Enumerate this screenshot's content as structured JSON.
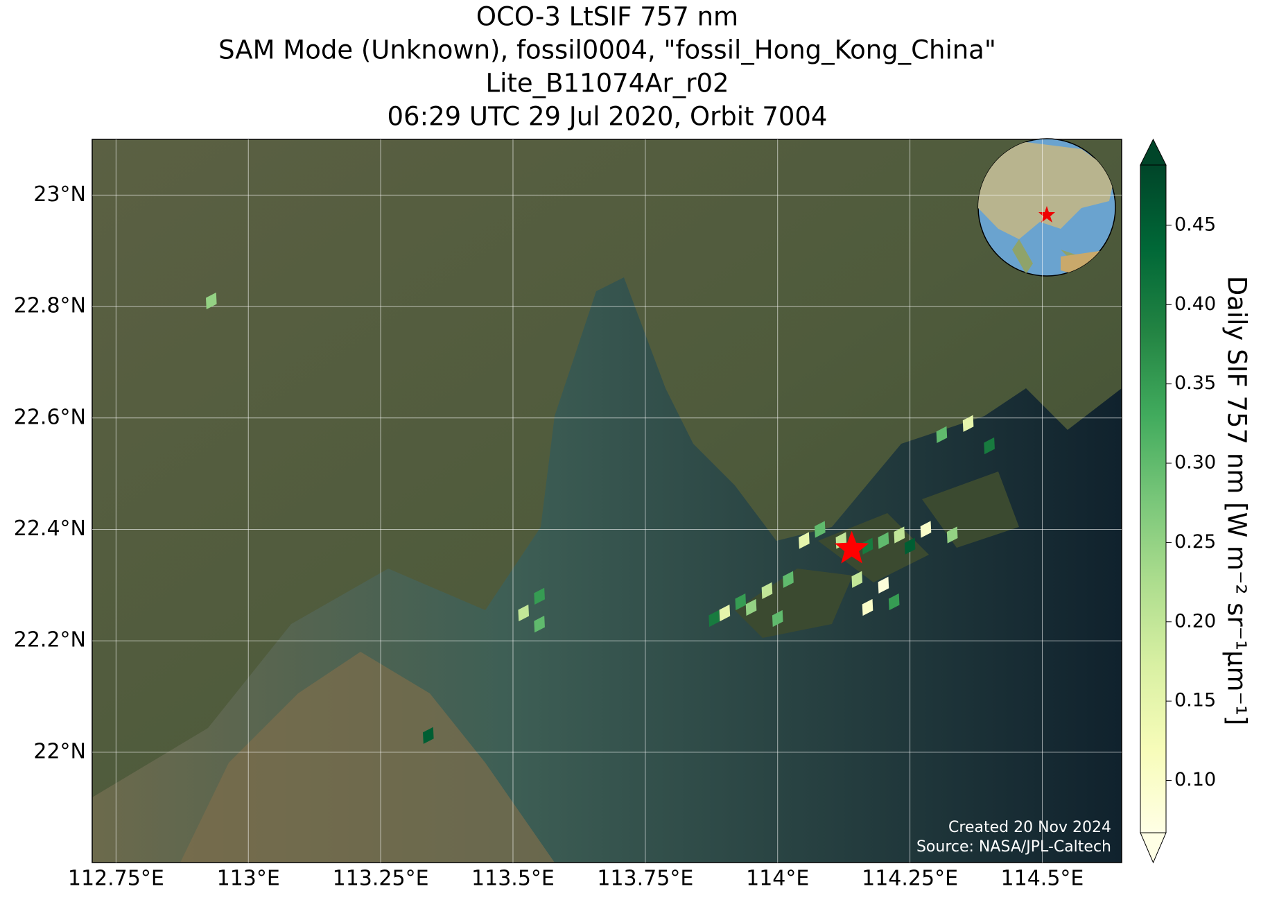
{
  "chart_data": {
    "type": "map",
    "title": [
      "OCO-3 LtSIF 757 nm",
      "SAM Mode (Unknown), fossil0004, \"fossil_Hong_Kong_China\"",
      "Lite_B11074Ar_r02",
      "06:29 UTC 29 Jul 2020, Orbit 7004"
    ],
    "xlim": [
      112.705,
      114.65
    ],
    "ylim": [
      21.802,
      23.1
    ],
    "xticks": [
      {
        "value": 112.75,
        "label": "112.75°E"
      },
      {
        "value": 113,
        "label": "113°E"
      },
      {
        "value": 113.25,
        "label": "113.25°E"
      },
      {
        "value": 113.5,
        "label": "113.5°E"
      },
      {
        "value": 113.75,
        "label": "113.75°E"
      },
      {
        "value": 114,
        "label": "114°E"
      },
      {
        "value": 114.25,
        "label": "114.25°E"
      },
      {
        "value": 114.5,
        "label": "114.5°E"
      }
    ],
    "yticks": [
      {
        "value": 22,
        "label": "22°N"
      },
      {
        "value": 22.2,
        "label": "22.2°N"
      },
      {
        "value": 22.4,
        "label": "22.4°N"
      },
      {
        "value": 22.6,
        "label": "22.6°N"
      },
      {
        "value": 22.8,
        "label": "22.8°N"
      },
      {
        "value": 23,
        "label": "23°N"
      }
    ],
    "grid": true,
    "colorbar": {
      "label": "Daily SIF 757 nm [W m⁻² sr⁻¹μm⁻¹]",
      "clim": [
        0.067,
        0.488
      ],
      "colormap": "YlGn",
      "ticks": [
        {
          "value": 0.1,
          "label": "0.10"
        },
        0.15,
        {
          "value": 0.2,
          "label": "0.20"
        },
        0.25,
        {
          "value": 0.3,
          "label": "0.30"
        },
        0.35,
        {
          "value": 0.4,
          "label": "0.40"
        },
        0.45
      ]
    },
    "soundings": {
      "lon": [
        112.93,
        114.05,
        114.08,
        114.12,
        114.17,
        114.2,
        114.23,
        114.25,
        114.28,
        114.33,
        114.02,
        113.98,
        113.93,
        113.88,
        113.9,
        113.95,
        114.0,
        114.17,
        114.22,
        114.2,
        114.15,
        113.52,
        113.55,
        113.55,
        114.31,
        114.36,
        114.4,
        113.34
      ],
      "lat": [
        22.81,
        22.38,
        22.4,
        22.38,
        22.37,
        22.38,
        22.39,
        22.37,
        22.4,
        22.39,
        22.31,
        22.29,
        22.27,
        22.24,
        22.25,
        22.26,
        22.24,
        22.26,
        22.27,
        22.3,
        22.31,
        22.25,
        22.28,
        22.23,
        22.57,
        22.59,
        22.55,
        22.03
      ],
      "values": [
        0.25,
        0.15,
        0.3,
        0.2,
        0.4,
        0.3,
        0.2,
        0.45,
        0.1,
        0.25,
        0.3,
        0.2,
        0.35,
        0.4,
        0.15,
        0.25,
        0.3,
        0.1,
        0.35,
        0.08,
        0.2,
        0.2,
        0.35,
        0.3,
        0.3,
        0.15,
        0.4,
        0.45
      ]
    },
    "target": {
      "lon": 114.14,
      "lat": 22.365
    },
    "credits": [
      "Created 20 Nov 2024",
      "Source: NASA/JPL-Caltech"
    ]
  }
}
